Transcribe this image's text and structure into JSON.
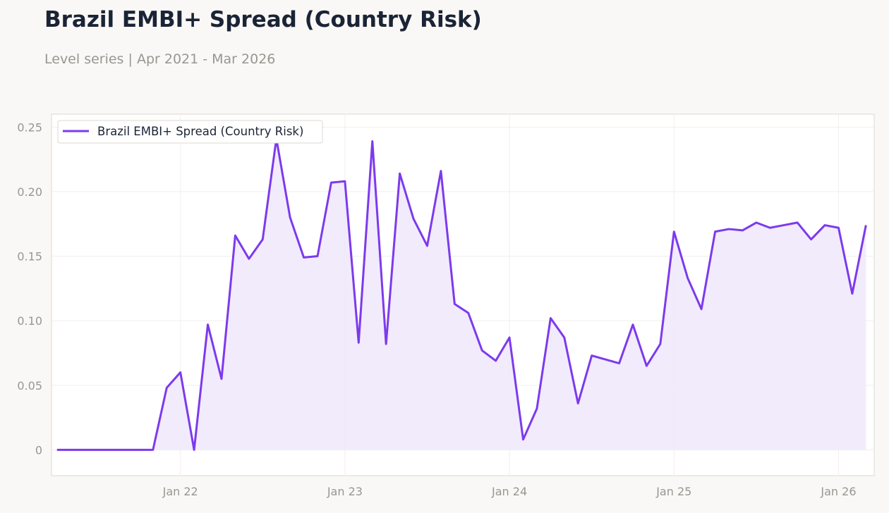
{
  "header": {
    "title": "Brazil EMBI+ Spread (Country Risk)",
    "subtitle": "Level series | Apr 2021 - Mar 2026"
  },
  "chart_data": {
    "type": "area",
    "x_axis": {
      "type": "date",
      "start": "2021-04",
      "end": "2026-03",
      "tick_labels": [
        "Jan 22",
        "Jan 23",
        "Jan 24",
        "Jan 25",
        "Jan 26"
      ],
      "tick_dates": [
        "2022-01",
        "2023-01",
        "2024-01",
        "2025-01",
        "2026-01"
      ]
    },
    "y_axis": {
      "range": [
        -0.02,
        0.26
      ],
      "ticks": [
        0,
        0.05,
        0.1,
        0.15,
        0.2,
        0.25
      ],
      "tick_labels": [
        "0",
        "0.05",
        "0.10",
        "0.15",
        "0.20",
        "0.25"
      ]
    },
    "grid": true,
    "legend": {
      "placement": "top-left",
      "entries": [
        "Brazil EMBI+ Spread (Country Risk)"
      ]
    },
    "colors": {
      "line": "#7c3aed",
      "fill": "#efe8fb"
    },
    "series": [
      {
        "name": "Brazil EMBI+ Spread (Country Risk)",
        "x": [
          "2021-04",
          "2021-05",
          "2021-06",
          "2021-07",
          "2021-08",
          "2021-09",
          "2021-10",
          "2021-11",
          "2021-12",
          "2022-01",
          "2022-02",
          "2022-03",
          "2022-04",
          "2022-05",
          "2022-06",
          "2022-07",
          "2022-08",
          "2022-09",
          "2022-10",
          "2022-11",
          "2022-12",
          "2023-01",
          "2023-02",
          "2023-03",
          "2023-04",
          "2023-05",
          "2023-06",
          "2023-07",
          "2023-08",
          "2023-09",
          "2023-10",
          "2023-11",
          "2023-12",
          "2024-01",
          "2024-02",
          "2024-03",
          "2024-04",
          "2024-05",
          "2024-06",
          "2024-07",
          "2024-08",
          "2024-09",
          "2024-10",
          "2024-11",
          "2024-12",
          "2025-01",
          "2025-02",
          "2025-03",
          "2025-04",
          "2025-05",
          "2025-06",
          "2025-07",
          "2025-08",
          "2025-09",
          "2025-10",
          "2025-11",
          "2025-12",
          "2026-01",
          "2026-02",
          "2026-03"
        ],
        "values": [
          0,
          0,
          0,
          0,
          0,
          0,
          0,
          0,
          0.048,
          0.06,
          0,
          0.097,
          0.055,
          0.166,
          0.148,
          0.163,
          0.241,
          0.18,
          0.149,
          0.15,
          0.207,
          0.208,
          0.083,
          0.239,
          0.082,
          0.214,
          0.179,
          0.158,
          0.216,
          0.113,
          0.106,
          0.077,
          0.069,
          0.087,
          0.008,
          0.032,
          0.102,
          0.087,
          0.036,
          0.073,
          0.07,
          0.067,
          0.097,
          0.065,
          0.082,
          0.169,
          0.133,
          0.109,
          0.169,
          0.171,
          0.17,
          0.176,
          0.172,
          0.174,
          0.176,
          0.163,
          0.174,
          0.172,
          0.121,
          0.174
        ]
      }
    ]
  }
}
